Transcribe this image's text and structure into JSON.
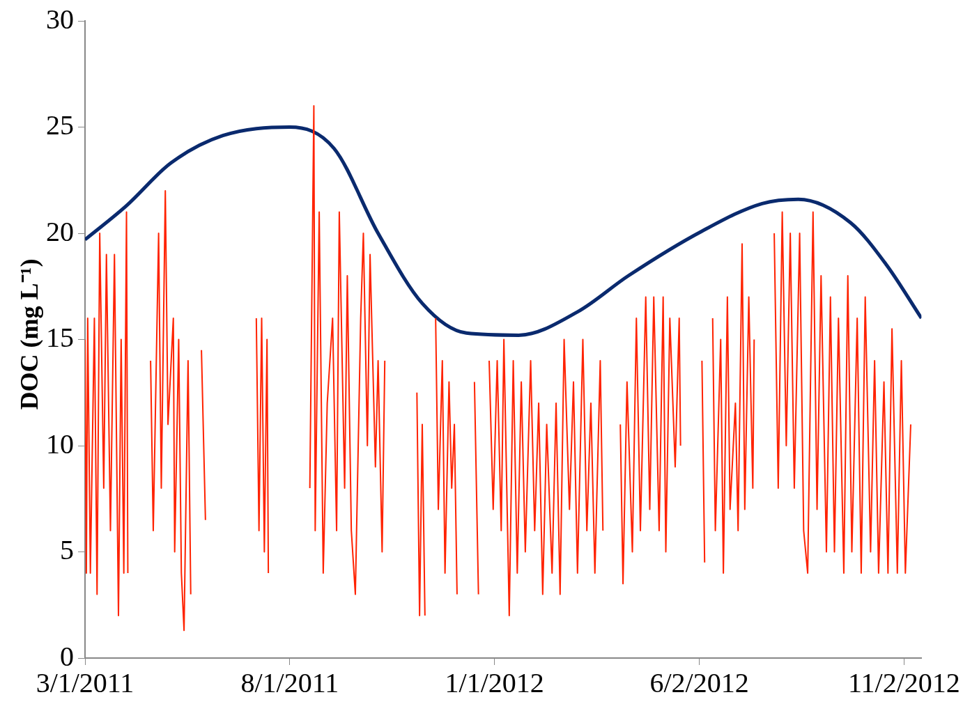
{
  "chart_data": {
    "type": "line",
    "ylabel": "DOC (mg L⁻¹)",
    "xlim": [
      "2011-03-01",
      "2012-11-15"
    ],
    "xticks": [
      {
        "value": "2011-03-01",
        "label": "3/1/2011"
      },
      {
        "value": "2011-08-01",
        "label": "8/1/2011"
      },
      {
        "value": "2012-01-01",
        "label": "1/1/2012"
      },
      {
        "value": "2012-06-02",
        "label": "6/2/2012"
      },
      {
        "value": "2012-11-02",
        "label": "11/2/2012"
      }
    ],
    "ylim": [
      0,
      30
    ],
    "yticks": [
      0,
      5,
      10,
      15,
      20,
      25,
      30
    ],
    "grid": false,
    "legend": false,
    "marker": "none",
    "line_style": "solid",
    "series": [
      {
        "color": "#ff2200",
        "x": [
          "2011-03-01",
          "2011-03-02",
          "2011-03-03",
          "2011-03-05",
          "2011-03-08",
          "2011-03-10",
          "2011-03-12",
          "2011-03-15",
          "2011-03-17",
          "2011-03-20",
          "2011-03-23",
          "2011-03-26",
          "2011-03-28",
          "2011-03-30",
          "2011-04-01",
          "2011-04-02",
          "2011-04-15",
          "2011-04-19",
          "2011-04-21",
          "2011-04-25",
          "2011-04-27",
          "2011-04-30",
          "2011-05-02",
          "2011-05-06",
          "2011-05-07",
          "2011-05-10",
          "2011-05-12",
          "2011-05-14",
          "2011-05-17",
          "2011-05-19",
          "2011-05-23",
          "2011-05-27",
          "2011-05-30",
          "2011-06-20",
          "2011-07-07",
          "2011-07-09",
          "2011-07-11",
          "2011-07-13",
          "2011-07-15",
          "2011-07-16",
          "2011-07-25",
          "2011-08-16",
          "2011-08-19",
          "2011-08-20",
          "2011-08-23",
          "2011-08-26",
          "2011-08-29",
          "2011-09-02",
          "2011-09-05",
          "2011-09-07",
          "2011-09-11",
          "2011-09-13",
          "2011-09-16",
          "2011-09-19",
          "2011-09-23",
          "2011-09-25",
          "2011-09-28",
          "2011-09-30",
          "2011-10-04",
          "2011-10-06",
          "2011-10-09",
          "2011-10-11",
          "2011-10-20",
          "2011-11-04",
          "2011-11-06",
          "2011-11-08",
          "2011-11-10",
          "2011-11-13",
          "2011-11-18",
          "2011-11-20",
          "2011-11-23",
          "2011-11-25",
          "2011-11-28",
          "2011-11-30",
          "2011-12-02",
          "2011-12-04",
          "2011-12-08",
          "2011-12-17",
          "2011-12-20",
          "2011-12-24",
          "2011-12-28",
          "2011-12-31",
          "2012-01-03",
          "2012-01-06",
          "2012-01-08",
          "2012-01-12",
          "2012-01-15",
          "2012-01-18",
          "2012-01-21",
          "2012-01-24",
          "2012-01-28",
          "2012-01-31",
          "2012-02-03",
          "2012-02-06",
          "2012-02-09",
          "2012-02-13",
          "2012-02-16",
          "2012-02-19",
          "2012-02-22",
          "2012-02-26",
          "2012-02-29",
          "2012-03-03",
          "2012-03-07",
          "2012-03-10",
          "2012-03-13",
          "2012-03-16",
          "2012-03-20",
          "2012-03-22",
          "2012-03-27",
          "2012-04-04",
          "2012-04-06",
          "2012-04-09",
          "2012-04-13",
          "2012-04-16",
          "2012-04-19",
          "2012-04-23",
          "2012-04-26",
          "2012-04-29",
          "2012-05-03",
          "2012-05-06",
          "2012-05-08",
          "2012-05-11",
          "2012-05-15",
          "2012-05-18",
          "2012-05-19",
          "2012-05-28",
          "2012-06-04",
          "2012-06-06",
          "2012-06-08",
          "2012-06-12",
          "2012-06-14",
          "2012-06-18",
          "2012-06-20",
          "2012-06-23",
          "2012-06-25",
          "2012-06-29",
          "2012-07-01",
          "2012-07-04",
          "2012-07-06",
          "2012-07-09",
          "2012-07-12",
          "2012-07-13",
          "2012-07-20",
          "2012-07-28",
          "2012-07-31",
          "2012-08-03",
          "2012-08-06",
          "2012-08-09",
          "2012-08-12",
          "2012-08-16",
          "2012-08-19",
          "2012-08-22",
          "2012-08-26",
          "2012-08-29",
          "2012-09-01",
          "2012-09-05",
          "2012-09-08",
          "2012-09-11",
          "2012-09-14",
          "2012-09-18",
          "2012-09-21",
          "2012-09-24",
          "2012-09-28",
          "2012-10-01",
          "2012-10-04",
          "2012-10-08",
          "2012-10-11",
          "2012-10-14",
          "2012-10-18",
          "2012-10-21",
          "2012-10-24",
          "2012-10-28",
          "2012-10-31",
          "2012-11-03",
          "2012-11-07"
        ],
        "values": [
          15,
          4,
          16,
          4,
          16,
          3,
          20,
          8,
          19,
          6,
          19,
          2,
          15,
          4,
          21,
          4,
          null,
          14,
          6,
          20,
          8,
          22,
          11,
          16,
          5,
          15,
          4,
          1.3,
          14,
          3,
          null,
          14.5,
          6.5,
          null,
          16,
          6,
          16,
          5,
          15,
          4,
          null,
          8,
          26,
          6,
          21,
          4,
          12,
          16,
          6,
          21,
          8,
          18,
          6,
          3,
          16,
          20,
          10,
          19,
          9,
          14,
          5,
          14,
          null,
          12.5,
          2,
          11,
          2,
          null,
          16,
          7,
          14,
          4,
          13,
          8,
          11,
          3,
          null,
          13,
          3,
          null,
          14,
          7,
          14,
          6,
          15,
          2,
          14,
          4,
          13,
          5,
          14,
          6,
          12,
          3,
          11,
          4,
          12,
          3,
          15,
          7,
          13,
          4,
          15,
          6,
          12,
          4,
          14,
          6,
          null,
          11,
          3.5,
          13,
          5,
          16,
          6,
          17,
          7,
          17,
          6,
          17,
          5,
          16,
          9,
          16,
          10,
          null,
          14,
          4.5,
          null,
          16,
          6,
          15,
          4,
          17,
          7,
          12,
          6,
          19.5,
          7,
          17,
          8,
          15,
          null,
          20,
          8,
          21,
          10,
          20,
          8,
          20,
          6,
          4,
          21,
          7,
          18,
          5,
          17,
          5,
          16,
          4,
          18,
          5,
          16,
          4,
          17,
          5,
          14,
          4,
          13,
          4,
          15.5,
          4,
          14,
          4,
          11
        ]
      },
      {
        "type": "line",
        "color": "#0a2a6e",
        "x": [
          "2011-03-01",
          "2011-04-01",
          "2011-05-04",
          "2011-06-12",
          "2011-08-01",
          "2011-09-03",
          "2011-10-06",
          "2011-11-08",
          "2011-12-11",
          "2012-01-19",
          "2012-03-03",
          "2012-04-10",
          "2012-06-04",
          "2012-07-19",
          "2012-08-15",
          "2012-09-23",
          "2012-10-20",
          "2012-11-15"
        ],
        "values": [
          19.7,
          21.3,
          23.3,
          24.6,
          25,
          24,
          20,
          16.7,
          15.3,
          15.2,
          16.3,
          18,
          20.1,
          21.4,
          21.6,
          20.5,
          18.5,
          16
        ]
      }
    ]
  }
}
